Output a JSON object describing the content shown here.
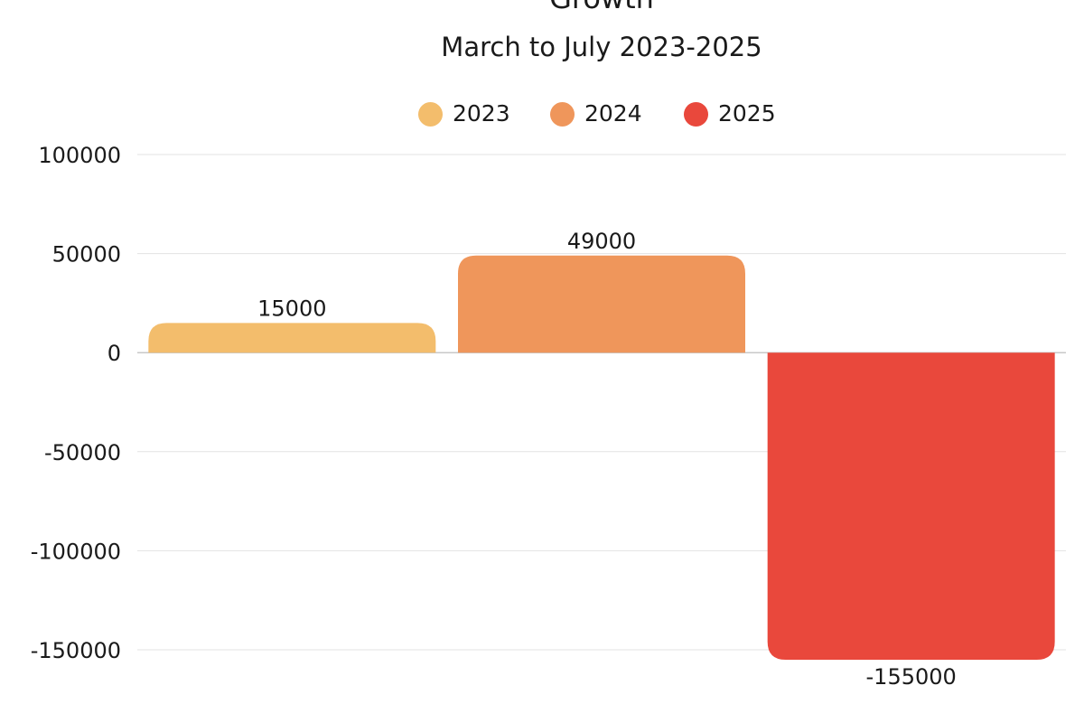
{
  "chart_data": {
    "type": "bar",
    "title": "Growth",
    "subtitle": "March to July 2023-2025",
    "categories": [
      "2023",
      "2024",
      "2025"
    ],
    "values": [
      15000,
      49000,
      -155000
    ],
    "series": [
      {
        "name": "2023",
        "value": 15000,
        "color": "#F3BD6C"
      },
      {
        "name": "2024",
        "value": 49000,
        "color": "#EF965B"
      },
      {
        "name": "2025",
        "value": -155000,
        "color": "#E9483C"
      }
    ],
    "xlabel": "",
    "ylabel": "",
    "ylim": [
      -150000,
      100000
    ],
    "yticks": [
      100000,
      50000,
      0,
      -50000,
      -100000,
      -150000
    ],
    "grid": true,
    "legend_position": "top-center"
  }
}
